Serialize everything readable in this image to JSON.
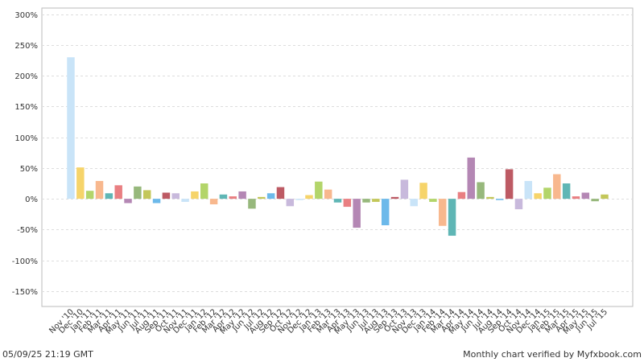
{
  "footer": {
    "timestamp": "05/09/25 21:19 GMT",
    "credit": "Monthly chart verified by Myfxbook.com"
  },
  "chart_data": {
    "type": "bar",
    "title": "",
    "xlabel": "",
    "ylabel": "",
    "ylim": [
      -175,
      310
    ],
    "yticks": [
      -150,
      -100,
      -50,
      0,
      50,
      100,
      150,
      200,
      250,
      300
    ],
    "ytick_labels": [
      "-150%",
      "-100%",
      "-50%",
      "0%",
      "50%",
      "100%",
      "150%",
      "200%",
      "250%",
      "300%"
    ],
    "grid": true,
    "legend": "none",
    "categories": [
      "Nov '10",
      "Dec '10",
      "Jan '11",
      "Feb '11",
      "Mar '11",
      "Apr '11",
      "May '11",
      "Jun '11",
      "Jul '11",
      "Aug '11",
      "Sep '11",
      "Oct '11",
      "Nov '11",
      "Dec '11",
      "Jan '12",
      "Feb '12",
      "Mar '12",
      "Apr '12",
      "May '12",
      "Jun '12",
      "Jul '12",
      "Aug '12",
      "Sep '12",
      "Oct '12",
      "Nov '12",
      "Dec '12",
      "Jan '13",
      "Feb '13",
      "Mar '13",
      "Apr '13",
      "May '13",
      "Jun '13",
      "Jul '13",
      "Aug '13",
      "Sep '13",
      "Oct '13",
      "Nov '13",
      "Dec '13",
      "Jan '14",
      "Feb '14",
      "Mar '14",
      "Apr '14",
      "May '14",
      "Jun '14",
      "Jul '14",
      "Aug '14",
      "Sep '14",
      "Oct '14",
      "Nov '14",
      "Dec '14",
      "Jan '15",
      "Feb '15",
      "Mar '15",
      "Apr '15",
      "May '15",
      "Jun '15",
      "Jul '15"
    ],
    "values": [
      230,
      51,
      13,
      29,
      9,
      22,
      -7,
      20,
      14,
      -7,
      10,
      9,
      -5,
      12,
      25,
      -9,
      7,
      4,
      12,
      -16,
      3,
      9,
      19,
      -12,
      -2,
      6,
      28,
      15,
      -6,
      -13,
      -47,
      -6,
      -5,
      -43,
      3,
      31,
      -12,
      26,
      -5,
      -44,
      -60,
      11,
      67,
      27,
      3,
      -2,
      48,
      -17,
      29,
      9,
      18,
      40,
      25,
      4,
      10,
      -4,
      7
    ],
    "colors": [
      "#c9e4f8",
      "#f6d46a",
      "#b3d56a",
      "#f8b88e",
      "#5fb6b5",
      "#e97f82",
      "#b487b4",
      "#97b87c",
      "#c3c75a",
      "#6cb9ea",
      "#bd5a64",
      "#c8b9dc",
      "#c9e4f8",
      "#f6d46a",
      "#b3d56a",
      "#f8b88e",
      "#5fb6b5",
      "#e97f82",
      "#b487b4",
      "#97b87c",
      "#c3c75a",
      "#6cb9ea",
      "#bd5a64",
      "#c8b9dc",
      "#c9e4f8",
      "#f6d46a",
      "#b3d56a",
      "#f8b88e",
      "#5fb6b5",
      "#e97f82",
      "#b487b4",
      "#97b87c",
      "#c3c75a",
      "#6cb9ea",
      "#bd5a64",
      "#c8b9dc",
      "#c9e4f8",
      "#f6d46a",
      "#b3d56a",
      "#f8b88e",
      "#5fb6b5",
      "#e97f82",
      "#b487b4",
      "#97b87c",
      "#c3c75a",
      "#6cb9ea",
      "#bd5a64",
      "#c8b9dc",
      "#c9e4f8",
      "#f6d46a",
      "#b3d56a",
      "#f8b88e",
      "#5fb6b5",
      "#e97f82",
      "#b487b4",
      "#97b87c",
      "#c3c75a"
    ]
  }
}
